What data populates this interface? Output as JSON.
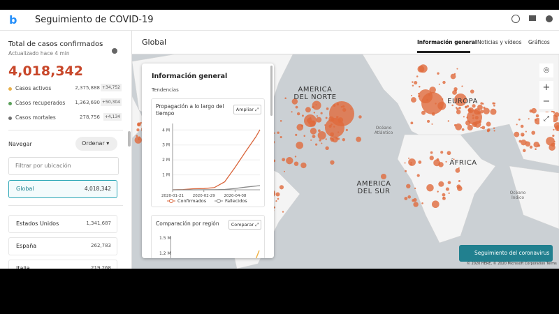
{
  "header": {
    "title": "Seguimiento de COVID-19"
  },
  "sidebar": {
    "title": "Total de casos confirmados",
    "updated": "Actualizado hace 4 min",
    "total": "4,018,342",
    "stats": [
      {
        "label": "Casos activos",
        "value": "2,375,888",
        "delta": "+34,752",
        "color": "#e8b04a"
      },
      {
        "label": "Casos recuperados",
        "value": "1,363,690",
        "delta": "+50,304",
        "color": "#5aa05a"
      },
      {
        "label": "Casos mortales",
        "value": "278,756",
        "delta": "+4,134",
        "color": "#707070"
      }
    ],
    "navigate": "Navegar",
    "sort": "Ordenar",
    "filter": "Filtrar por ubicación",
    "global": {
      "label": "Global",
      "value": "4,018,342"
    },
    "regions": [
      {
        "label": "Estados Unidos",
        "value": "1,341,687"
      },
      {
        "label": "España",
        "value": "262,783"
      },
      {
        "label": "Italia",
        "value": "219,268"
      }
    ]
  },
  "main": {
    "title": "Global",
    "tabs": [
      "Información general",
      "Noticias y vídeos",
      "Gráficos"
    ]
  },
  "panel": {
    "title": "Información general",
    "section": "Tendencias",
    "card1": {
      "title": "Propagación a lo largo del tiempo",
      "button": "Ampliar",
      "chart_data": {
        "type": "line",
        "x": [
          "2020-01-21",
          "2020-02-03",
          "2020-02-16",
          "2020-02-29",
          "2020-03-13",
          "2020-03-26",
          "2020-04-08",
          "2020-04-21",
          "2020-05-04",
          "2020-05-09"
        ],
        "xlim": [
          "2020-01-21",
          "2020-05-09"
        ],
        "xticks": [
          "2020-01-21",
          "2020-02-29",
          "2020-04-08"
        ],
        "ylim": [
          0,
          4200000
        ],
        "yticks": [
          {
            "value": 1000000,
            "label": "1 M"
          },
          {
            "value": 2000000,
            "label": "2 M"
          },
          {
            "value": 3000000,
            "label": "3 M"
          },
          {
            "value": 4000000,
            "label": "4 M"
          }
        ],
        "series": [
          {
            "name": "Confirmados",
            "color": "#d9653b",
            "values": [
              300,
              17000,
              69000,
              86000,
              145000,
              530000,
              1500000,
              2550000,
              3550000,
              4018342
            ]
          },
          {
            "name": "Fallecidos",
            "color": "#8a8a8a",
            "values": [
              6,
              360,
              1660,
              2980,
              5400,
              24000,
              88000,
              177000,
              250000,
              278756
            ]
          }
        ]
      }
    },
    "card2": {
      "title": "Comparación por región",
      "button": "Comparar",
      "yticks": [
        "1.5 M",
        "1.2 M"
      ]
    }
  },
  "map": {
    "labels": [
      "AMERICA DEL NORTE",
      "EUROPA",
      "ÁFRICA",
      "AMERICA DEL SUR"
    ],
    "oceans": [
      "Océano Atlántico",
      "Océano Índico"
    ],
    "button": "Seguimiento del coronavirus",
    "attribution": "© 2020 HERE, © 2020 Microsoft Corporation Terms"
  }
}
